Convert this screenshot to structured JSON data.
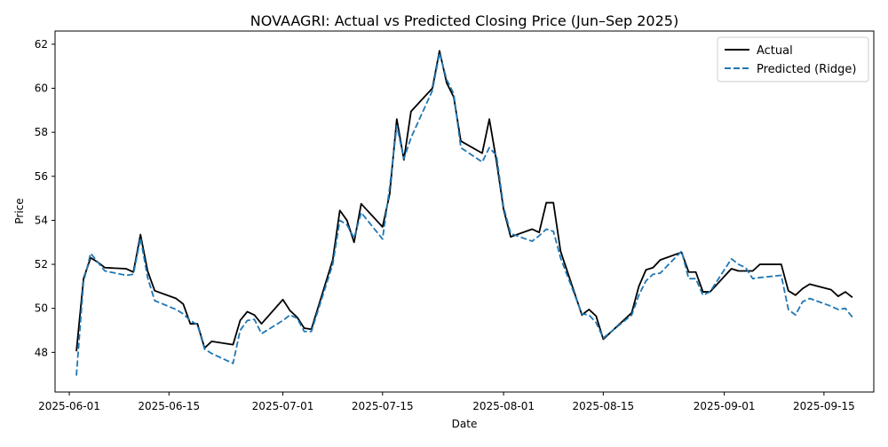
{
  "chart_data": {
    "type": "line",
    "title": "NOVAAGRI: Actual vs Predicted Closing Price (Jun–Sep 2025)",
    "xlabel": "Date",
    "ylabel": "Price",
    "xlim": [
      "2025-05-30",
      "2025-09-22"
    ],
    "ylim": [
      46.2,
      62.6
    ],
    "x_ticks": [
      "2025-06-01",
      "2025-06-15",
      "2025-07-01",
      "2025-07-15",
      "2025-08-01",
      "2025-08-15",
      "2025-09-01",
      "2025-09-15"
    ],
    "y_ticks": [
      48,
      50,
      52,
      54,
      56,
      58,
      60,
      62
    ],
    "grid": false,
    "legend_position": "top-right",
    "series": [
      {
        "name": "Actual",
        "color": "#000000",
        "style": "solid",
        "points": [
          [
            "2025-06-02",
            48.05
          ],
          [
            "2025-06-03",
            51.35
          ],
          [
            "2025-06-04",
            52.3
          ],
          [
            "2025-06-05",
            52.1
          ],
          [
            "2025-06-06",
            51.85
          ],
          [
            "2025-06-09",
            51.8
          ],
          [
            "2025-06-10",
            51.65
          ],
          [
            "2025-06-11",
            53.35
          ],
          [
            "2025-06-12",
            51.7
          ],
          [
            "2025-06-13",
            50.8
          ],
          [
            "2025-06-16",
            50.45
          ],
          [
            "2025-06-17",
            50.2
          ],
          [
            "2025-06-18",
            49.3
          ],
          [
            "2025-06-19",
            49.3
          ],
          [
            "2025-06-20",
            48.2
          ],
          [
            "2025-06-21",
            48.5
          ],
          [
            "2025-06-24",
            48.35
          ],
          [
            "2025-06-25",
            49.45
          ],
          [
            "2025-06-26",
            49.85
          ],
          [
            "2025-06-27",
            49.7
          ],
          [
            "2025-06-28",
            49.3
          ],
          [
            "2025-07-01",
            50.4
          ],
          [
            "2025-07-02",
            49.9
          ],
          [
            "2025-07-03",
            49.6
          ],
          [
            "2025-07-04",
            49.1
          ],
          [
            "2025-07-05",
            49.05
          ],
          [
            "2025-07-08",
            52.2
          ],
          [
            "2025-07-09",
            54.45
          ],
          [
            "2025-07-10",
            54.0
          ],
          [
            "2025-07-11",
            53.0
          ],
          [
            "2025-07-12",
            54.75
          ],
          [
            "2025-07-15",
            53.7
          ],
          [
            "2025-07-16",
            55.2
          ],
          [
            "2025-07-17",
            58.6
          ],
          [
            "2025-07-18",
            56.75
          ],
          [
            "2025-07-19",
            58.95
          ],
          [
            "2025-07-22",
            60.0
          ],
          [
            "2025-07-23",
            61.7
          ],
          [
            "2025-07-24",
            60.25
          ],
          [
            "2025-07-25",
            59.6
          ],
          [
            "2025-07-26",
            57.6
          ],
          [
            "2025-07-29",
            57.05
          ],
          [
            "2025-07-30",
            58.6
          ],
          [
            "2025-07-31",
            56.7
          ],
          [
            "2025-08-01",
            54.5
          ],
          [
            "2025-08-02",
            53.25
          ],
          [
            "2025-08-05",
            53.6
          ],
          [
            "2025-08-06",
            53.45
          ],
          [
            "2025-08-07",
            54.8
          ],
          [
            "2025-08-08",
            54.8
          ],
          [
            "2025-08-09",
            52.6
          ],
          [
            "2025-08-12",
            49.7
          ],
          [
            "2025-08-13",
            49.95
          ],
          [
            "2025-08-14",
            49.65
          ],
          [
            "2025-08-15",
            48.6
          ],
          [
            "2025-08-19",
            49.8
          ],
          [
            "2025-08-20",
            51.0
          ],
          [
            "2025-08-21",
            51.75
          ],
          [
            "2025-08-22",
            51.85
          ],
          [
            "2025-08-23",
            52.2
          ],
          [
            "2025-08-26",
            52.55
          ],
          [
            "2025-08-27",
            51.65
          ],
          [
            "2025-08-28",
            51.65
          ],
          [
            "2025-08-29",
            50.75
          ],
          [
            "2025-08-30",
            50.75
          ],
          [
            "2025-09-02",
            51.8
          ],
          [
            "2025-09-03",
            51.7
          ],
          [
            "2025-09-04",
            51.7
          ],
          [
            "2025-09-05",
            51.7
          ],
          [
            "2025-09-06",
            52.0
          ],
          [
            "2025-09-09",
            52.0
          ],
          [
            "2025-09-10",
            50.8
          ],
          [
            "2025-09-11",
            50.6
          ],
          [
            "2025-09-12",
            50.9
          ],
          [
            "2025-09-13",
            51.1
          ],
          [
            "2025-09-16",
            50.85
          ],
          [
            "2025-09-17",
            50.55
          ],
          [
            "2025-09-18",
            50.75
          ],
          [
            "2025-09-19",
            50.5
          ]
        ]
      },
      {
        "name": "Predicted (Ridge)",
        "color": "#1f77b4",
        "style": "dashed",
        "points": [
          [
            "2025-06-02",
            46.95
          ],
          [
            "2025-06-03",
            51.2
          ],
          [
            "2025-06-04",
            52.5
          ],
          [
            "2025-06-05",
            52.1
          ],
          [
            "2025-06-06",
            51.7
          ],
          [
            "2025-06-09",
            51.5
          ],
          [
            "2025-06-10",
            51.55
          ],
          [
            "2025-06-11",
            53.2
          ],
          [
            "2025-06-12",
            51.4
          ],
          [
            "2025-06-13",
            50.35
          ],
          [
            "2025-06-16",
            49.95
          ],
          [
            "2025-06-17",
            49.75
          ],
          [
            "2025-06-18",
            49.45
          ],
          [
            "2025-06-19",
            49.25
          ],
          [
            "2025-06-20",
            48.15
          ],
          [
            "2025-06-21",
            47.95
          ],
          [
            "2025-06-24",
            47.5
          ],
          [
            "2025-06-25",
            49.0
          ],
          [
            "2025-06-26",
            49.45
          ],
          [
            "2025-06-27",
            49.5
          ],
          [
            "2025-06-28",
            48.85
          ],
          [
            "2025-07-01",
            49.45
          ],
          [
            "2025-07-02",
            49.7
          ],
          [
            "2025-07-03",
            49.55
          ],
          [
            "2025-07-04",
            48.95
          ],
          [
            "2025-07-05",
            48.95
          ],
          [
            "2025-07-08",
            52.0
          ],
          [
            "2025-07-09",
            54.0
          ],
          [
            "2025-07-10",
            53.8
          ],
          [
            "2025-07-11",
            53.2
          ],
          [
            "2025-07-12",
            54.35
          ],
          [
            "2025-07-15",
            53.15
          ],
          [
            "2025-07-16",
            55.5
          ],
          [
            "2025-07-17",
            58.3
          ],
          [
            "2025-07-18",
            56.8
          ],
          [
            "2025-07-19",
            57.75
          ],
          [
            "2025-07-22",
            59.9
          ],
          [
            "2025-07-23",
            61.6
          ],
          [
            "2025-07-24",
            60.4
          ],
          [
            "2025-07-25",
            59.75
          ],
          [
            "2025-07-26",
            57.3
          ],
          [
            "2025-07-29",
            56.65
          ],
          [
            "2025-07-30",
            57.3
          ],
          [
            "2025-07-31",
            56.95
          ],
          [
            "2025-08-01",
            54.6
          ],
          [
            "2025-08-02",
            53.4
          ],
          [
            "2025-08-05",
            53.05
          ],
          [
            "2025-08-06",
            53.3
          ],
          [
            "2025-08-07",
            53.6
          ],
          [
            "2025-08-08",
            53.5
          ],
          [
            "2025-08-09",
            52.3
          ],
          [
            "2025-08-12",
            49.75
          ],
          [
            "2025-08-13",
            49.7
          ],
          [
            "2025-08-14",
            49.35
          ],
          [
            "2025-08-15",
            48.65
          ],
          [
            "2025-08-19",
            49.7
          ],
          [
            "2025-08-20",
            50.6
          ],
          [
            "2025-08-21",
            51.25
          ],
          [
            "2025-08-22",
            51.55
          ],
          [
            "2025-08-23",
            51.6
          ],
          [
            "2025-08-26",
            52.6
          ],
          [
            "2025-08-27",
            51.35
          ],
          [
            "2025-08-28",
            51.35
          ],
          [
            "2025-08-29",
            50.6
          ],
          [
            "2025-08-30",
            50.75
          ],
          [
            "2025-09-02",
            52.25
          ],
          [
            "2025-09-03",
            52.0
          ],
          [
            "2025-09-04",
            51.85
          ],
          [
            "2025-09-05",
            51.35
          ],
          [
            "2025-09-06",
            51.4
          ],
          [
            "2025-09-09",
            51.5
          ],
          [
            "2025-09-10",
            49.95
          ],
          [
            "2025-09-11",
            49.7
          ],
          [
            "2025-09-12",
            50.3
          ],
          [
            "2025-09-13",
            50.45
          ],
          [
            "2025-09-16",
            50.1
          ],
          [
            "2025-09-17",
            49.95
          ],
          [
            "2025-09-18",
            50.0
          ],
          [
            "2025-09-19",
            49.6
          ]
        ]
      }
    ]
  }
}
